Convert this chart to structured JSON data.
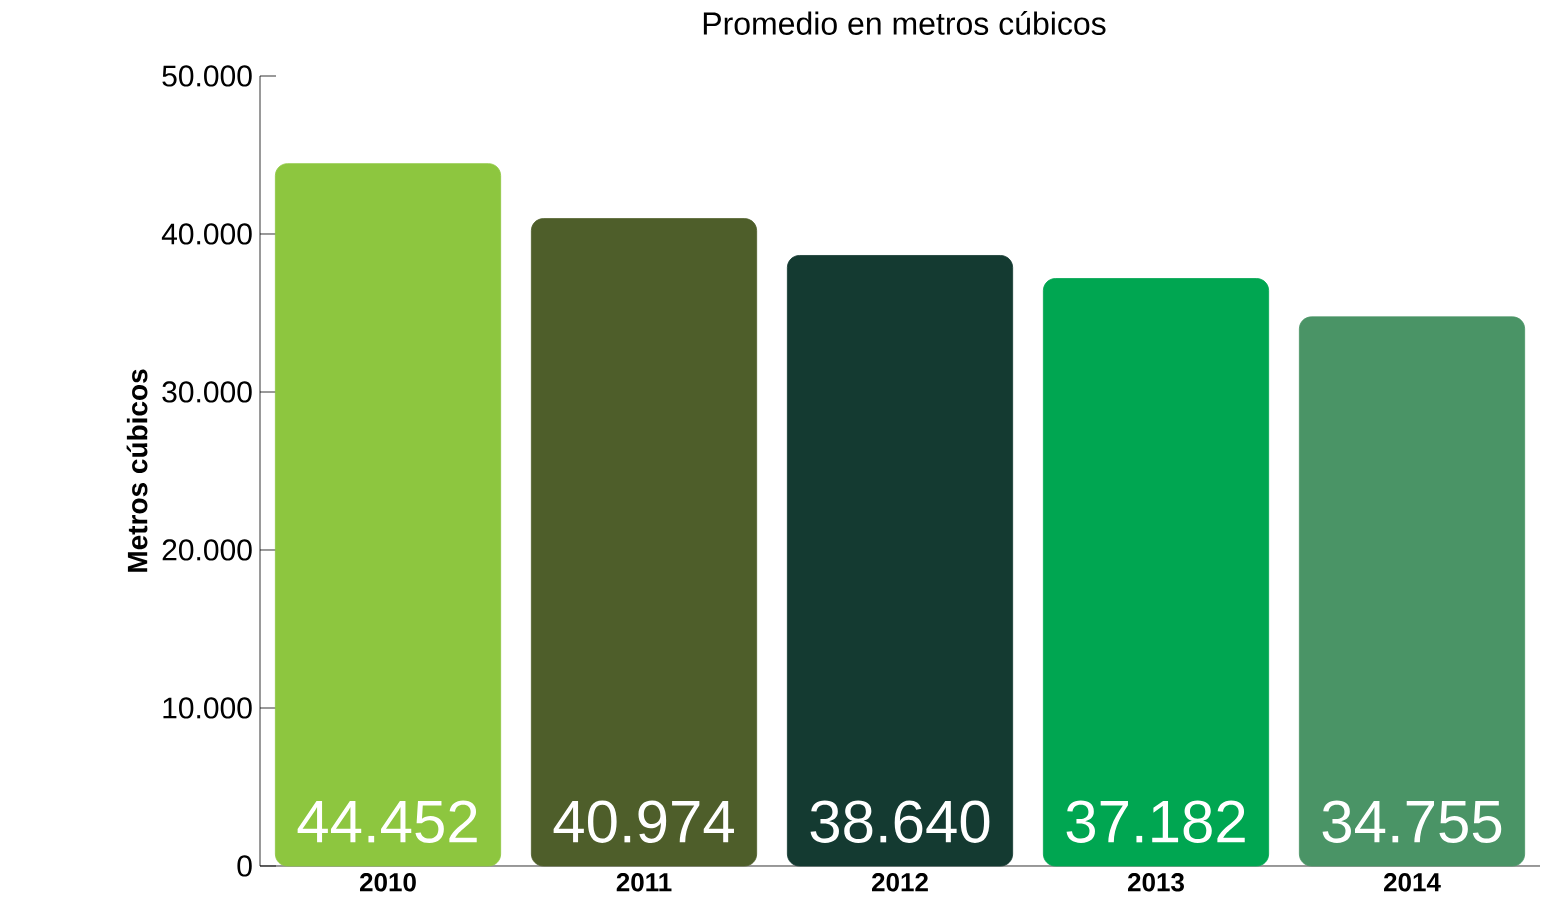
{
  "chart_data": {
    "type": "bar",
    "title": "Promedio en metros cúbicos",
    "ylabel": "Metros cúbicos",
    "categories": [
      "2010",
      "2011",
      "2012",
      "2013",
      "2014"
    ],
    "values": [
      44452,
      40974,
      38640,
      37182,
      34755
    ],
    "colors": [
      "#8dc63f",
      "#4e5e2a",
      "#143a31",
      "#00a651",
      "#4a9466"
    ],
    "value_labels": [
      "44.452",
      "40.974",
      "38.640",
      "37.182",
      "34.755"
    ],
    "ylim": [
      0,
      50000
    ],
    "yticks": [
      {
        "value": 0,
        "label": "0"
      },
      {
        "value": 10000,
        "label": "10.000"
      },
      {
        "value": 20000,
        "label": "20.000"
      },
      {
        "value": 30000,
        "label": "30.000"
      },
      {
        "value": 40000,
        "label": "40.000"
      },
      {
        "value": 50000,
        "label": "50.000"
      }
    ],
    "grid": false
  }
}
